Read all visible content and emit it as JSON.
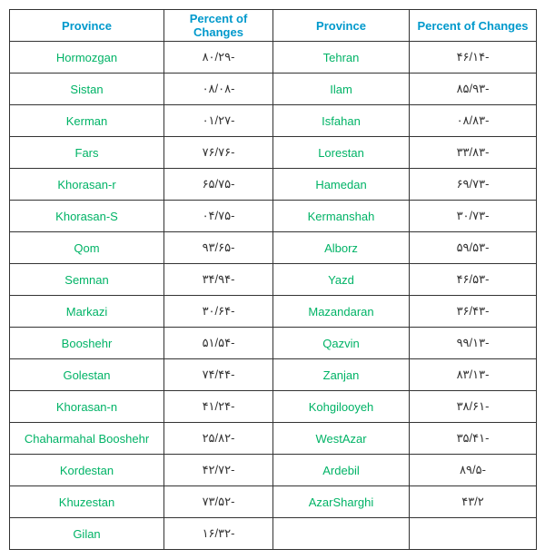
{
  "table": {
    "headers": [
      "Province",
      "Percent of Changes",
      "Province",
      "Percent of Changes"
    ],
    "rows": [
      [
        "Hormozgan",
        "-٩٢/٠٨",
        "Tehran",
        "-۴١/۶۴"
      ],
      [
        "Sistan",
        "-٨٠/٨٠",
        "Ilam",
        "-٣٩/۵٨"
      ],
      [
        "Kerman",
        "-٧٢/١٠",
        "Isfahan",
        "-٣٨/٨٠"
      ],
      [
        "Fars",
        "-۶٧/۶٧",
        "Lorestan",
        "-٣٨/٣٣"
      ],
      [
        "Khorasan-r",
        "-۵٧/۵۶",
        "Hamedan",
        "-٣٧/٩۶"
      ],
      [
        "Khorasan-S",
        "-۵٧/۴٠",
        "Kermanshah",
        "-٣٧/٠٣"
      ],
      [
        "Qom",
        "-۵۶/٣٩",
        "Alborz",
        "-٣۵/٩۵"
      ],
      [
        "Semnan",
        "-۴٩/۴٣",
        "Yazd",
        "-٣۵/۶۴"
      ],
      [
        "Markazi",
        "-۴۶/٠٣",
        "Mazandaran",
        "-٣۴/۶٣"
      ],
      [
        "Booshehr",
        "-۴۵/١۵",
        "Qazvin",
        "-٣١/٩٩"
      ],
      [
        "Golestan",
        "-۴۴/۴٧",
        "Zanjan",
        "-٣١/٣٨"
      ],
      [
        "Khorasan-n",
        "-۴٢/١۴",
        "Kohgilooyeh",
        "-١۶/٨٣"
      ],
      [
        "Chaharmahal Booshehr",
        "-٢٨/۵٢",
        "WestAzar",
        "-١۴/۵٣"
      ],
      [
        "Kordestan",
        "-٢٧/٢۴",
        "Ardebil",
        "-۵/٩٨"
      ],
      [
        "Khuzestan",
        "-٢۵/٣٧",
        "AzarSharghi",
        "٢/٣۴"
      ],
      [
        "Gilan",
        "-٢٣/۶١",
        "",
        ""
      ]
    ]
  },
  "style": {
    "header_color": "#0099cc",
    "province_color": "#00b366",
    "percent_color": "#333333",
    "border_color": "#333333",
    "background_color": "#ffffff"
  }
}
